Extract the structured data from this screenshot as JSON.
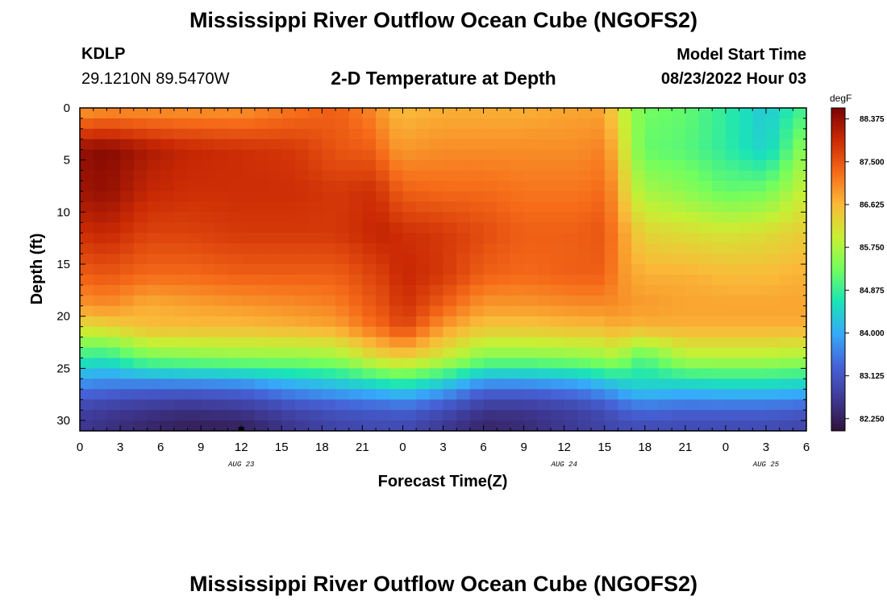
{
  "header": {
    "title": "Mississippi River Outflow Ocean Cube (NGOFS2)",
    "station_id": "KDLP",
    "coordinates": "29.1210N  89.5470W",
    "subtitle": "2-D Temperature at Depth",
    "model_start_label": "Model Start Time",
    "model_start_value": "08/23/2022 Hour 03"
  },
  "footer": {
    "next_title": "Mississippi River Outflow Ocean Cube (NGOFS2)"
  },
  "chart_data": {
    "type": "heatmap",
    "title": "2-D Temperature at Depth",
    "xlabel": "Forecast Time(Z)",
    "ylabel": "Depth (ft)",
    "xlim": [
      0,
      54
    ],
    "ylim": [
      0,
      31
    ],
    "x_ticks": [
      {
        "x": 0,
        "label": "0"
      },
      {
        "x": 3,
        "label": "3"
      },
      {
        "x": 6,
        "label": "6"
      },
      {
        "x": 9,
        "label": "9"
      },
      {
        "x": 12,
        "label": "12"
      },
      {
        "x": 15,
        "label": "15"
      },
      {
        "x": 18,
        "label": "18"
      },
      {
        "x": 21,
        "label": "21"
      },
      {
        "x": 24,
        "label": "0"
      },
      {
        "x": 27,
        "label": "3"
      },
      {
        "x": 30,
        "label": "6"
      },
      {
        "x": 33,
        "label": "9"
      },
      {
        "x": 36,
        "label": "12"
      },
      {
        "x": 39,
        "label": "15"
      },
      {
        "x": 42,
        "label": "18"
      },
      {
        "x": 45,
        "label": "21"
      },
      {
        "x": 48,
        "label": "0"
      },
      {
        "x": 51,
        "label": "3"
      },
      {
        "x": 54,
        "label": "6"
      }
    ],
    "date_labels": [
      {
        "x": 12,
        "label": "AUG 23"
      },
      {
        "x": 36,
        "label": "AUG 24"
      },
      {
        "x": 51,
        "label": "AUG 25"
      }
    ],
    "y_ticks": [
      0,
      5,
      10,
      15,
      20,
      25,
      30
    ],
    "colorbar": {
      "unit": "degF",
      "min": 82.0,
      "max": 88.6,
      "labels": [
        "88.375",
        "87.500",
        "86.625",
        "85.750",
        "84.875",
        "84.000",
        "83.125",
        "82.250"
      ],
      "colors": [
        "#30123b",
        "#3e3994",
        "#4662d7",
        "#36aaf9",
        "#1ae4b6",
        "#72fe5e",
        "#c8ef34",
        "#faba39",
        "#f66b19",
        "#cb2a04",
        "#7a0403"
      ]
    },
    "profiles": [
      {
        "x": 0,
        "t": [
          86.8,
          88.4,
          88.3,
          87.9,
          87.4,
          86.9,
          86.2,
          84.8,
          83.5,
          82.8,
          82.6
        ]
      },
      {
        "x": 2,
        "t": [
          86.9,
          88.5,
          88.4,
          88.0,
          87.5,
          87.0,
          86.3,
          84.7,
          83.4,
          82.7,
          82.5
        ]
      },
      {
        "x": 5,
        "t": [
          86.9,
          88.2,
          88.0,
          87.7,
          87.3,
          86.7,
          86.6,
          85.3,
          83.3,
          82.6,
          82.3
        ]
      },
      {
        "x": 8,
        "t": [
          86.9,
          88.0,
          87.9,
          87.7,
          87.3,
          86.8,
          86.6,
          85.4,
          83.3,
          82.5,
          82.2
        ]
      },
      {
        "x": 12,
        "t": [
          86.9,
          87.9,
          87.9,
          87.8,
          87.4,
          86.9,
          86.6,
          85.5,
          83.4,
          82.6,
          82.2
        ]
      },
      {
        "x": 16,
        "t": [
          87.2,
          87.8,
          87.9,
          87.8,
          87.4,
          87.0,
          86.7,
          85.5,
          83.8,
          82.9,
          82.6
        ]
      },
      {
        "x": 19,
        "t": [
          87.4,
          87.5,
          87.8,
          87.8,
          87.4,
          87.1,
          86.8,
          85.6,
          84.0,
          83.1,
          82.8
        ]
      },
      {
        "x": 22,
        "t": [
          87.0,
          87.4,
          87.9,
          88.0,
          87.7,
          87.5,
          87.3,
          86.2,
          84.2,
          83.2,
          82.9
        ]
      },
      {
        "x": 23,
        "t": [
          86.7,
          87.0,
          87.6,
          88.0,
          87.8,
          87.6,
          87.4,
          86.3,
          84.3,
          83.2,
          82.9
        ]
      },
      {
        "x": 24,
        "t": [
          86.6,
          86.9,
          87.4,
          87.9,
          88.0,
          87.9,
          87.7,
          86.4,
          84.4,
          83.3,
          82.9
        ]
      },
      {
        "x": 27,
        "t": [
          86.7,
          87.0,
          87.3,
          87.8,
          87.8,
          87.4,
          86.9,
          86.0,
          84.0,
          83.0,
          82.6
        ]
      },
      {
        "x": 30,
        "t": [
          86.7,
          87.0,
          87.3,
          87.6,
          87.4,
          86.9,
          86.5,
          85.4,
          83.4,
          82.6,
          82.3
        ]
      },
      {
        "x": 33,
        "t": [
          86.7,
          87.0,
          87.2,
          87.4,
          87.3,
          86.9,
          86.5,
          85.4,
          83.4,
          82.6,
          82.4
        ]
      },
      {
        "x": 37,
        "t": [
          86.8,
          87.0,
          87.2,
          87.4,
          87.4,
          87.0,
          86.6,
          85.5,
          83.6,
          82.8,
          82.7
        ]
      },
      {
        "x": 39,
        "t": [
          86.8,
          87.1,
          87.3,
          87.5,
          87.4,
          87.0,
          86.6,
          85.6,
          83.9,
          83.0,
          82.8
        ]
      },
      {
        "x": 40,
        "t": [
          86.2,
          86.5,
          86.8,
          87.0,
          87.0,
          87.0,
          86.8,
          85.8,
          84.0,
          83.2,
          82.9
        ]
      },
      {
        "x": 41,
        "t": [
          85.6,
          85.7,
          86.0,
          86.6,
          86.8,
          86.9,
          86.6,
          85.2,
          84.3,
          83.3,
          82.9
        ]
      },
      {
        "x": 42,
        "t": [
          85.3,
          85.2,
          85.7,
          86.3,
          86.7,
          86.9,
          86.7,
          85.1,
          84.3,
          83.4,
          82.9
        ]
      },
      {
        "x": 45,
        "t": [
          85.2,
          85.1,
          85.5,
          86.2,
          86.7,
          86.8,
          86.7,
          85.8,
          84.2,
          83.3,
          82.9
        ]
      },
      {
        "x": 48,
        "t": [
          84.8,
          84.8,
          85.2,
          86.1,
          86.6,
          86.8,
          86.7,
          85.8,
          84.3,
          83.3,
          82.9
        ]
      },
      {
        "x": 51,
        "t": [
          84.3,
          84.4,
          85.3,
          86.2,
          86.6,
          86.8,
          86.7,
          85.8,
          84.3,
          83.3,
          82.9
        ]
      },
      {
        "x": 54,
        "t": [
          85.0,
          85.6,
          86.0,
          86.4,
          86.7,
          86.8,
          86.7,
          85.7,
          84.2,
          83.2,
          82.8
        ]
      }
    ],
    "profile_depths": [
      0,
      4,
      8,
      12,
      16,
      19,
      21,
      24,
      27,
      29,
      31
    ],
    "marker": {
      "x": 12,
      "y": 31
    }
  }
}
